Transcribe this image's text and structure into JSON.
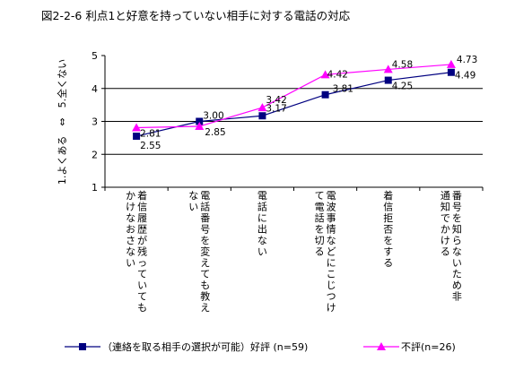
{
  "chart_data": {
    "type": "line",
    "title": "図2-2-6 利点1と好意を持っていない相手に対する電話の対応",
    "ylabel": "1.よくある　⇔　5.全くない",
    "ylim": [
      1,
      5
    ],
    "yticks": [
      1,
      2,
      3,
      4,
      5
    ],
    "grid": true,
    "legend_position": "bottom",
    "categories": [
      "着信履歴が残っていても\nかけなおさない",
      "電話番号を変えても教え\nない",
      "電話に出ない",
      "電波事情などにこじつけ\nて電話を切る",
      "着信拒否をする",
      "番号を知らないため非\n通知でかける"
    ],
    "series": [
      {
        "name": "（連絡を取る相手の選択が可能）好評 (n=59)",
        "values": [
          2.55,
          3.0,
          3.17,
          3.81,
          4.25,
          4.49
        ],
        "labels": [
          "2.55",
          "3.00",
          "3.17",
          "3.81",
          "4.25",
          "4.49"
        ],
        "color": "#000080",
        "marker": "square"
      },
      {
        "name": "不評(n=26)",
        "values": [
          2.81,
          2.85,
          3.42,
          4.42,
          4.58,
          4.73
        ],
        "labels": [
          "2.81",
          "2.85",
          "3.42",
          "4.42",
          "4.58",
          "4.73"
        ],
        "color": "#ff00ff",
        "marker": "triangle"
      }
    ]
  }
}
